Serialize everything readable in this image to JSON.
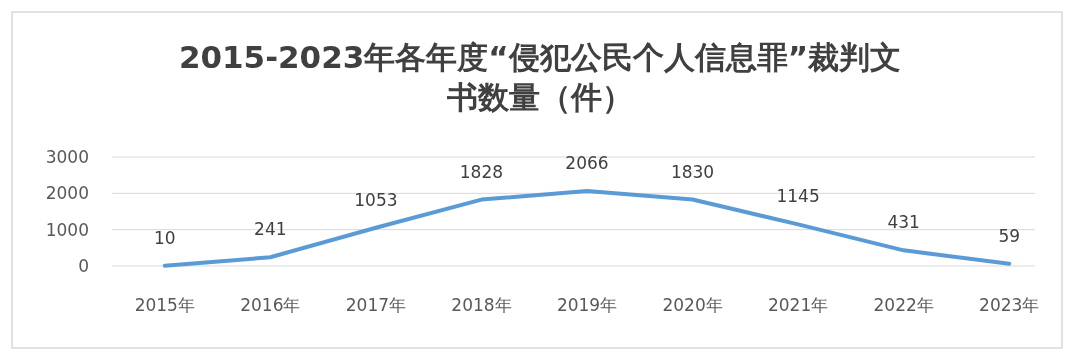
{
  "chart_data": {
    "type": "line",
    "title": "2015-2023年各年度“侵犯公民个人信息罪”裁判文书数量（件）",
    "categories": [
      "2015年",
      "2016年",
      "2017年",
      "2018年",
      "2019年",
      "2020年",
      "2021年",
      "2022年",
      "2023年"
    ],
    "series": [
      {
        "color": "#5b9bd5",
        "values": [
          10,
          241,
          1053,
          1828,
          2066,
          1830,
          1145,
          431,
          59
        ]
      }
    ],
    "ylim": [
      0,
      3000
    ],
    "yticks": [
      0,
      1000,
      2000,
      3000
    ],
    "grid": "y",
    "data_labels": true,
    "marker": "none",
    "line_style": "solid"
  }
}
